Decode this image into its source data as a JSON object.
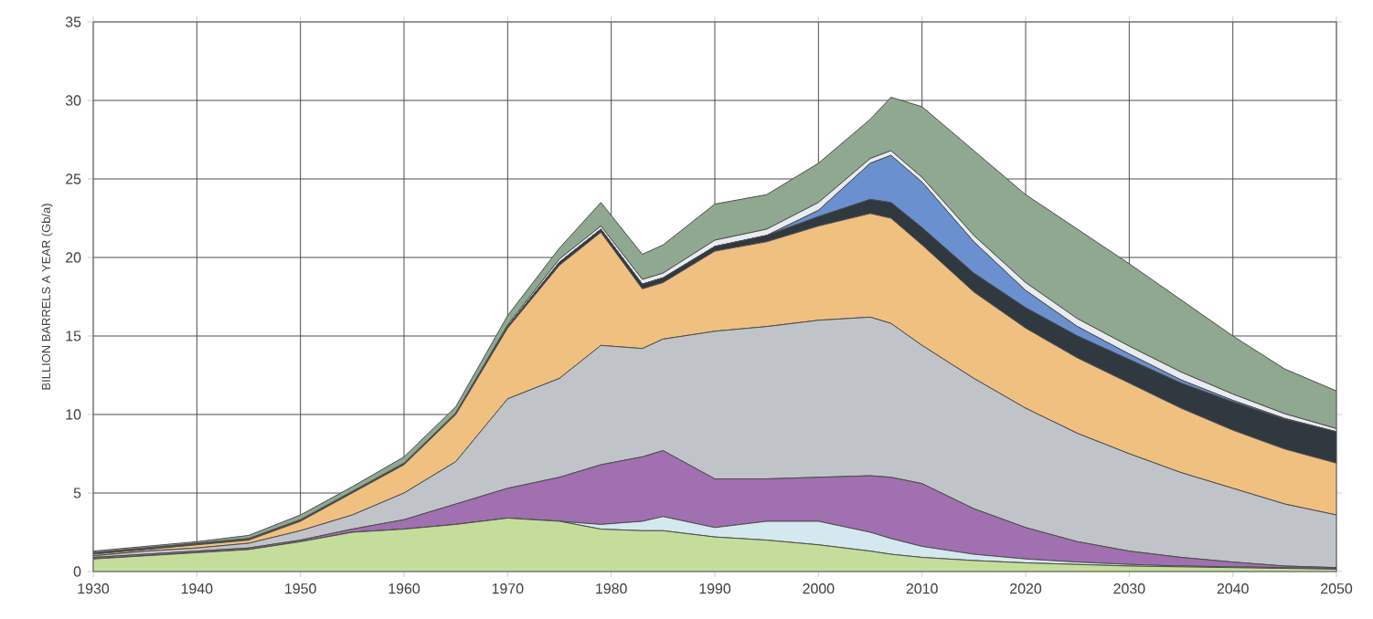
{
  "chart_data": {
    "type": "area",
    "stacked": true,
    "ylabel": "BILLION BARRELS A YEAR (Gb/a)",
    "x": [
      1930,
      1935,
      1940,
      1945,
      1950,
      1955,
      1960,
      1965,
      1970,
      1975,
      1979,
      1983,
      1985,
      1990,
      1995,
      2000,
      2005,
      2007,
      2010,
      2015,
      2020,
      2025,
      2030,
      2035,
      2040,
      2045,
      2050
    ],
    "xlim": [
      1930,
      2050
    ],
    "ylim": [
      0,
      35
    ],
    "xticks": [
      1930,
      1940,
      1950,
      1960,
      1970,
      1980,
      1990,
      2000,
      2010,
      2020,
      2030,
      2040,
      2050
    ],
    "yticks": [
      0,
      5,
      10,
      15,
      20,
      25,
      30,
      35
    ],
    "grid": true,
    "series": [
      {
        "color": "#c5dd9a",
        "values": [
          0.8,
          1.0,
          1.2,
          1.4,
          1.9,
          2.5,
          2.7,
          3.0,
          3.4,
          3.2,
          2.7,
          2.6,
          2.6,
          2.2,
          2.0,
          1.7,
          1.3,
          1.1,
          0.9,
          0.7,
          0.55,
          0.45,
          0.35,
          0.3,
          0.25,
          0.2,
          0.15
        ]
      },
      {
        "color": "#d4e8f0",
        "values": [
          0,
          0,
          0,
          0,
          0,
          0,
          0,
          0,
          0,
          0,
          0.3,
          0.6,
          0.9,
          0.6,
          1.2,
          1.5,
          1.2,
          1.0,
          0.7,
          0.4,
          0.25,
          0.15,
          0.1,
          0.05,
          0.05,
          0.05,
          0.05
        ]
      },
      {
        "color": "#a070b0",
        "values": [
          0.1,
          0.1,
          0.1,
          0.1,
          0.1,
          0.2,
          0.6,
          1.3,
          1.9,
          2.8,
          3.8,
          4.1,
          4.2,
          3.1,
          2.7,
          2.8,
          3.6,
          3.9,
          4.0,
          2.9,
          2.0,
          1.3,
          0.85,
          0.55,
          0.3,
          0.1,
          0.05
        ]
      },
      {
        "color": "#c0c4c8",
        "values": [
          0.1,
          0.2,
          0.2,
          0.3,
          0.6,
          0.9,
          1.7,
          2.7,
          5.7,
          6.3,
          7.6,
          6.9,
          7.1,
          9.4,
          9.7,
          10.0,
          10.1,
          9.8,
          8.8,
          8.3,
          7.6,
          6.9,
          6.2,
          5.4,
          4.7,
          3.95,
          3.35
        ]
      },
      {
        "color": "#f0c080",
        "values": [
          0.1,
          0.1,
          0.2,
          0.2,
          0.6,
          1.4,
          1.8,
          3.0,
          4.5,
          7.2,
          7.2,
          3.8,
          3.6,
          5.1,
          5.4,
          6.0,
          6.6,
          6.7,
          6.4,
          5.5,
          5.1,
          4.8,
          4.5,
          4.1,
          3.7,
          3.5,
          3.3
        ]
      },
      {
        "color": "#303840",
        "values": [
          0.05,
          0.05,
          0.05,
          0.05,
          0.05,
          0.05,
          0.05,
          0.05,
          0.1,
          0.2,
          0.2,
          0.3,
          0.3,
          0.3,
          0.4,
          0.6,
          0.9,
          1.0,
          1.1,
          1.2,
          1.3,
          1.4,
          1.5,
          1.6,
          1.8,
          1.9,
          2.0
        ]
      },
      {
        "color": "#6a90d0",
        "values": [
          0,
          0,
          0,
          0,
          0,
          0,
          0,
          0,
          0,
          0,
          0,
          0,
          0,
          0,
          0,
          0.4,
          2.3,
          3.0,
          2.9,
          2.0,
          1.1,
          0.6,
          0.35,
          0.2,
          0.1,
          0.05,
          0
        ]
      },
      {
        "color": "#e8ecf0",
        "values": [
          0.05,
          0.05,
          0.05,
          0.05,
          0.05,
          0.05,
          0.05,
          0.05,
          0.1,
          0.2,
          0.2,
          0.3,
          0.3,
          0.4,
          0.4,
          0.5,
          0.3,
          0.3,
          0.3,
          0.4,
          0.5,
          0.5,
          0.5,
          0.5,
          0.4,
          0.3,
          0.2
        ]
      },
      {
        "color": "#8fa890",
        "values": [
          0.1,
          0.1,
          0.1,
          0.2,
          0.3,
          0.3,
          0.4,
          0.4,
          0.6,
          0.7,
          1.5,
          1.6,
          1.8,
          2.3,
          2.2,
          2.5,
          2.5,
          3.4,
          4.5,
          5.4,
          5.6,
          5.7,
          5.25,
          4.6,
          3.7,
          2.85,
          2.4
        ]
      }
    ]
  }
}
